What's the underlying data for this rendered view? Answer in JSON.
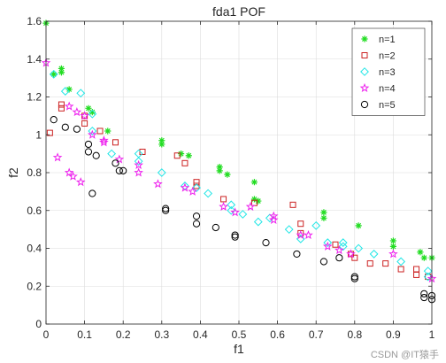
{
  "chart_data": {
    "type": "scatter",
    "title": "fda1 POF",
    "xlabel": "f1",
    "ylabel": "f2",
    "xlim": [
      0,
      1
    ],
    "ylim": [
      0,
      1.6
    ],
    "xticks": [
      0,
      0.1,
      0.2,
      0.3,
      0.4,
      0.5,
      0.6,
      0.7,
      0.8,
      0.9,
      1
    ],
    "yticks": [
      0,
      0.2,
      0.4,
      0.6,
      0.8,
      1,
      1.2,
      1.4,
      1.6
    ],
    "xtick_labels": [
      "0",
      "0.1",
      "0.2",
      "0.3",
      "0.4",
      "0.5",
      "0.6",
      "0.7",
      "0.8",
      "0.9",
      "1"
    ],
    "ytick_labels": [
      "0",
      "0.2",
      "0.4",
      "0.6",
      "0.8",
      "1",
      "1.2",
      "1.4",
      "1.6"
    ],
    "grid": true,
    "legend_position": "top-right",
    "series": [
      {
        "name": "n=1",
        "marker": "asterisk",
        "color": "#22dd22",
        "points": [
          [
            0.0,
            1.59
          ],
          [
            0.02,
            1.32
          ],
          [
            0.04,
            1.33
          ],
          [
            0.04,
            1.35
          ],
          [
            0.06,
            1.24
          ],
          [
            0.11,
            1.14
          ],
          [
            0.12,
            1.12
          ],
          [
            0.16,
            1.02
          ],
          [
            0.3,
            0.97
          ],
          [
            0.3,
            0.95
          ],
          [
            0.35,
            0.9
          ],
          [
            0.37,
            0.89
          ],
          [
            0.45,
            0.83
          ],
          [
            0.45,
            0.81
          ],
          [
            0.47,
            0.79
          ],
          [
            0.54,
            0.75
          ],
          [
            0.54,
            0.66
          ],
          [
            0.55,
            0.65
          ],
          [
            0.72,
            0.59
          ],
          [
            0.72,
            0.56
          ],
          [
            0.81,
            0.52
          ],
          [
            0.9,
            0.44
          ],
          [
            0.9,
            0.41
          ],
          [
            0.97,
            0.38
          ],
          [
            0.98,
            0.35
          ],
          [
            1.0,
            0.35
          ]
        ]
      },
      {
        "name": "n=2",
        "marker": "square",
        "color": "#cc2222",
        "points": [
          [
            0.01,
            1.01
          ],
          [
            0.04,
            1.16
          ],
          [
            0.04,
            1.14
          ],
          [
            0.1,
            1.06
          ],
          [
            0.1,
            1.1
          ],
          [
            0.14,
            1.02
          ],
          [
            0.18,
            0.96
          ],
          [
            0.25,
            0.91
          ],
          [
            0.34,
            0.89
          ],
          [
            0.36,
            0.85
          ],
          [
            0.39,
            0.75
          ],
          [
            0.39,
            0.73
          ],
          [
            0.46,
            0.66
          ],
          [
            0.54,
            0.64
          ],
          [
            0.64,
            0.63
          ],
          [
            0.66,
            0.53
          ],
          [
            0.66,
            0.48
          ],
          [
            0.75,
            0.42
          ],
          [
            0.79,
            0.37
          ],
          [
            0.8,
            0.35
          ],
          [
            0.84,
            0.32
          ],
          [
            0.88,
            0.32
          ],
          [
            0.92,
            0.29
          ],
          [
            0.96,
            0.29
          ],
          [
            0.96,
            0.26
          ],
          [
            0.99,
            0.25
          ]
        ]
      },
      {
        "name": "n=3",
        "marker": "diamond",
        "color": "#22e6e6",
        "points": [
          [
            0.02,
            1.32
          ],
          [
            0.05,
            1.23
          ],
          [
            0.09,
            1.22
          ],
          [
            0.12,
            1.11
          ],
          [
            0.12,
            1.02
          ],
          [
            0.17,
            0.9
          ],
          [
            0.24,
            0.9
          ],
          [
            0.24,
            0.86
          ],
          [
            0.3,
            0.8
          ],
          [
            0.36,
            0.73
          ],
          [
            0.39,
            0.72
          ],
          [
            0.42,
            0.69
          ],
          [
            0.48,
            0.63
          ],
          [
            0.48,
            0.6
          ],
          [
            0.51,
            0.58
          ],
          [
            0.55,
            0.54
          ],
          [
            0.58,
            0.56
          ],
          [
            0.63,
            0.5
          ],
          [
            0.66,
            0.45
          ],
          [
            0.7,
            0.52
          ],
          [
            0.73,
            0.43
          ],
          [
            0.77,
            0.43
          ],
          [
            0.77,
            0.41
          ],
          [
            0.81,
            0.4
          ],
          [
            0.85,
            0.37
          ],
          [
            0.92,
            0.33
          ],
          [
            0.99,
            0.28
          ],
          [
            0.99,
            0.25
          ]
        ]
      },
      {
        "name": "n=4",
        "marker": "pentagram",
        "color": "#ee22ee",
        "points": [
          [
            0.0,
            1.38
          ],
          [
            0.03,
            0.88
          ],
          [
            0.06,
            0.8
          ],
          [
            0.07,
            0.78
          ],
          [
            0.09,
            0.75
          ],
          [
            0.06,
            1.15
          ],
          [
            0.08,
            1.12
          ],
          [
            0.1,
            1.1
          ],
          [
            0.12,
            1.0
          ],
          [
            0.15,
            0.96
          ],
          [
            0.15,
            0.97
          ],
          [
            0.19,
            0.87
          ],
          [
            0.24,
            0.84
          ],
          [
            0.24,
            0.8
          ],
          [
            0.29,
            0.74
          ],
          [
            0.36,
            0.72
          ],
          [
            0.38,
            0.7
          ],
          [
            0.46,
            0.62
          ],
          [
            0.49,
            0.59
          ],
          [
            0.53,
            0.62
          ],
          [
            0.59,
            0.57
          ],
          [
            0.59,
            0.55
          ],
          [
            0.66,
            0.47
          ],
          [
            0.68,
            0.47
          ],
          [
            0.73,
            0.41
          ],
          [
            0.76,
            0.39
          ],
          [
            0.79,
            0.37
          ],
          [
            0.9,
            0.37
          ],
          [
            1.0,
            0.24
          ]
        ]
      },
      {
        "name": "n=5",
        "marker": "circle",
        "color": "#000000",
        "points": [
          [
            0.02,
            1.08
          ],
          [
            0.05,
            1.04
          ],
          [
            0.08,
            1.03
          ],
          [
            0.11,
            0.95
          ],
          [
            0.11,
            0.91
          ],
          [
            0.13,
            0.89
          ],
          [
            0.18,
            0.85
          ],
          [
            0.19,
            0.81
          ],
          [
            0.2,
            0.81
          ],
          [
            0.12,
            0.69
          ],
          [
            0.31,
            0.61
          ],
          [
            0.31,
            0.6
          ],
          [
            0.39,
            0.57
          ],
          [
            0.39,
            0.53
          ],
          [
            0.44,
            0.51
          ],
          [
            0.49,
            0.47
          ],
          [
            0.49,
            0.46
          ],
          [
            0.57,
            0.43
          ],
          [
            0.65,
            0.37
          ],
          [
            0.72,
            0.33
          ],
          [
            0.76,
            0.35
          ],
          [
            0.8,
            0.25
          ],
          [
            0.8,
            0.24
          ],
          [
            0.98,
            0.16
          ],
          [
            0.98,
            0.14
          ],
          [
            1.0,
            0.15
          ],
          [
            1.0,
            0.13
          ]
        ]
      }
    ]
  },
  "watermark": "CSDN @IT猿手"
}
